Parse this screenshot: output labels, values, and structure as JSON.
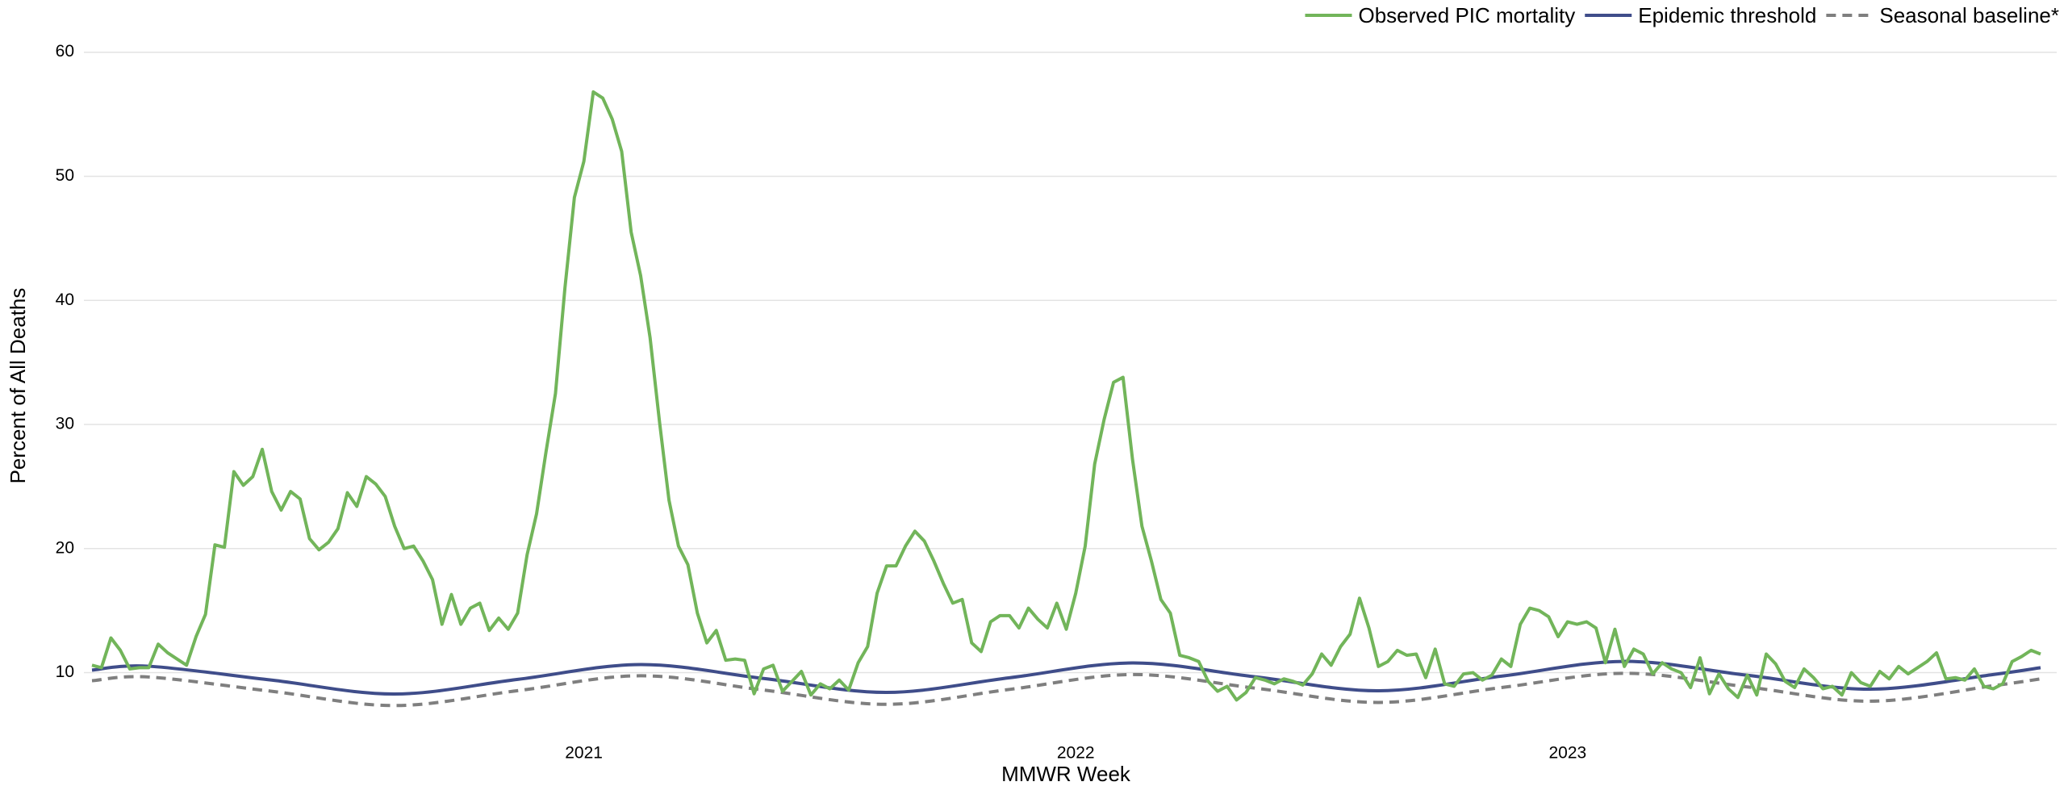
{
  "chart_data": {
    "type": "line",
    "x_label": "MMWR Week",
    "y_label": "Percent of All Deaths",
    "legend": "top-right",
    "grid": true,
    "xlim": [
      0,
      206
    ],
    "xticks": [
      {
        "value": 52,
        "label": "2021"
      },
      {
        "value": 104,
        "label": "2022"
      },
      {
        "value": 156,
        "label": "2023"
      }
    ],
    "ylim": [
      7.5,
      60.5
    ],
    "yticks": [
      10,
      20,
      30,
      40,
      50,
      60
    ],
    "series": [
      {
        "name": "Observed PIC mortality",
        "color": "#72b55a",
        "dash": false,
        "smooth": false,
        "x": [
          0,
          1,
          2,
          3,
          4,
          5,
          6,
          7,
          8,
          9,
          10,
          11,
          12,
          13,
          14,
          15,
          16,
          17,
          18,
          19,
          20,
          21,
          22,
          23,
          24,
          25,
          26,
          27,
          28,
          29,
          30,
          31,
          32,
          33,
          34,
          35,
          36,
          37,
          38,
          39,
          40,
          41,
          42,
          43,
          44,
          45,
          46,
          47,
          48,
          49,
          50,
          51,
          52,
          53,
          54,
          55,
          56,
          57,
          58,
          59,
          60,
          61,
          62,
          63,
          64,
          65,
          66,
          67,
          68,
          69,
          70,
          71,
          72,
          73,
          74,
          75,
          76,
          77,
          78,
          79,
          80,
          81,
          82,
          83,
          84,
          85,
          86,
          87,
          88,
          89,
          90,
          91,
          92,
          93,
          94,
          95,
          96,
          97,
          98,
          99,
          100,
          101,
          102,
          103,
          104,
          105,
          106,
          107,
          108,
          109,
          110,
          111,
          112,
          113,
          114,
          115,
          116,
          117,
          118,
          119,
          120,
          121,
          122,
          123,
          124,
          125,
          126,
          127,
          128,
          129,
          130,
          131,
          132,
          133,
          134,
          135,
          136,
          137,
          138,
          139,
          140,
          141,
          142,
          143,
          144,
          145,
          146,
          147,
          148,
          149,
          150,
          151,
          152,
          153,
          154,
          155,
          156,
          157,
          158,
          159,
          160,
          161,
          162,
          163,
          164,
          165,
          166,
          167,
          168,
          169,
          170,
          171,
          172,
          173,
          174,
          175,
          176,
          177,
          178,
          179,
          180,
          181,
          182,
          183,
          184,
          185,
          186,
          187,
          188,
          189,
          190,
          191,
          192,
          193,
          194,
          195,
          196,
          197,
          198,
          199,
          200,
          201,
          202,
          203,
          204,
          205,
          206
        ],
        "values": [
          10.6,
          10.4,
          12.8,
          11.8,
          10.3,
          10.4,
          10.4,
          12.3,
          11.6,
          11.1,
          10.6,
          12.9,
          14.7,
          20.3,
          20.1,
          26.2,
          25.1,
          25.8,
          28.0,
          24.6,
          23.1,
          24.6,
          24.0,
          20.8,
          19.9,
          20.5,
          21.6,
          24.5,
          23.4,
          25.8,
          25.2,
          24.2,
          21.8,
          20.0,
          20.2,
          19.0,
          17.5,
          13.9,
          16.3,
          13.9,
          15.2,
          15.6,
          13.4,
          14.4,
          13.5,
          14.8,
          19.5,
          22.8,
          27.8,
          32.5,
          41.0,
          48.3,
          51.2,
          56.8,
          56.3,
          54.6,
          52.0,
          45.5,
          42.0,
          37.0,
          30.2,
          23.9,
          20.2,
          18.7,
          14.8,
          12.4,
          13.4,
          11.0,
          11.1,
          11.0,
          8.3,
          10.3,
          10.6,
          8.5,
          9.3,
          10.1,
          8.2,
          9.1,
          8.7,
          9.4,
          8.6,
          10.8,
          12.1,
          16.4,
          18.6,
          18.6,
          20.2,
          21.4,
          20.6,
          19.0,
          17.2,
          15.6,
          15.9,
          12.4,
          11.7,
          14.1,
          14.6,
          14.6,
          13.6,
          15.2,
          14.3,
          13.6,
          15.6,
          13.5,
          16.4,
          20.2,
          26.8,
          30.4,
          33.4,
          33.8,
          27.2,
          21.8,
          19.0,
          15.9,
          14.8,
          11.4,
          11.2,
          10.9,
          9.3,
          8.5,
          8.9,
          7.8,
          8.4,
          9.6,
          9.4,
          9.1,
          9.5,
          9.3,
          9.0,
          9.9,
          11.5,
          10.6,
          12.1,
          13.1,
          16.0,
          13.6,
          10.5,
          10.9,
          11.8,
          11.4,
          11.5,
          9.6,
          11.9,
          9.1,
          8.9,
          9.9,
          10.0,
          9.4,
          9.8,
          11.1,
          10.5,
          13.9,
          15.2,
          15.0,
          14.5,
          12.9,
          14.1,
          13.9,
          14.1,
          13.6,
          10.8,
          13.5,
          10.5,
          11.9,
          11.5,
          9.9,
          10.8,
          10.3,
          10.0,
          8.8,
          11.2,
          8.3,
          9.9,
          8.7,
          8.0,
          9.8,
          8.2,
          11.5,
          10.7,
          9.3,
          8.8,
          10.3,
          9.6,
          8.7,
          8.9,
          8.2,
          10.0,
          9.2,
          8.9,
          10.1,
          9.5,
          10.5,
          9.9,
          10.4,
          10.9,
          11.6,
          9.5,
          9.6,
          9.4,
          10.3,
          8.9,
          8.7,
          9.1,
          10.9,
          11.3,
          11.8,
          11.5
        ]
      },
      {
        "name": "Epidemic threshold",
        "color": "#3f4d8a",
        "dash": false,
        "smooth": true,
        "x": [
          0,
          6,
          19,
          32,
          45,
          58,
          71,
          84,
          97,
          110,
          123,
          136,
          149,
          162,
          175,
          188,
          201,
          206
        ],
        "values": [
          10.21,
          10.52,
          9.4,
          8.28,
          9.46,
          10.65,
          9.53,
          8.41,
          9.59,
          10.78,
          9.66,
          8.54,
          9.72,
          10.91,
          9.79,
          8.67,
          9.85,
          10.4
        ]
      },
      {
        "name": "Seasonal baseline*",
        "color": "#7f7f7f",
        "dash": true,
        "smooth": true,
        "x": [
          0,
          6,
          19,
          32,
          45,
          58,
          71,
          84,
          97,
          110,
          123,
          136,
          149,
          162,
          175,
          188,
          201,
          206
        ],
        "values": [
          9.35,
          9.65,
          8.5,
          7.35,
          8.55,
          9.75,
          8.6,
          7.45,
          8.65,
          9.85,
          8.75,
          7.6,
          8.8,
          9.95,
          8.85,
          7.7,
          8.95,
          9.5
        ]
      }
    ]
  }
}
